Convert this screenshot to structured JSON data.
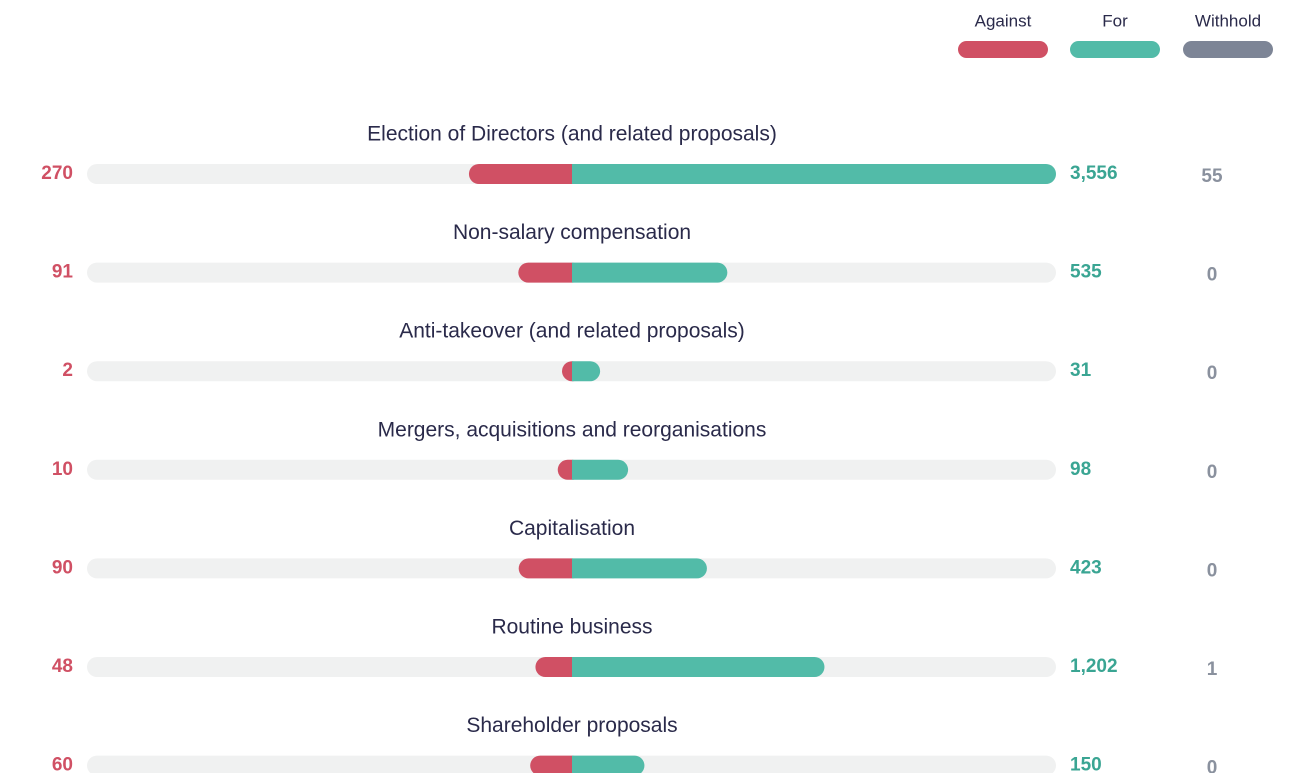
{
  "chart_data": {
    "type": "diverging-bar",
    "categories": [
      "Election of Directors (and related proposals)",
      "Non-salary compensation",
      "Anti-takeover (and related proposals)",
      "Mergers, acquisitions and reorganisations",
      "Capitalisation",
      "Routine business",
      "Shareholder proposals"
    ],
    "series": [
      {
        "name": "Against",
        "color": "#d05064",
        "values": [
          270,
          91,
          2,
          10,
          90,
          48,
          60
        ]
      },
      {
        "name": "For",
        "color": "#52bba8",
        "values": [
          3556,
          535,
          31,
          98,
          423,
          1202,
          150
        ],
        "value_labels": [
          "3,556",
          "535",
          "31",
          "98",
          "423",
          "1,202",
          "150"
        ]
      },
      {
        "name": "Withhold",
        "color": "#7d8596",
        "values": [
          55,
          0,
          0,
          0,
          0,
          1,
          0
        ]
      }
    ]
  }
}
